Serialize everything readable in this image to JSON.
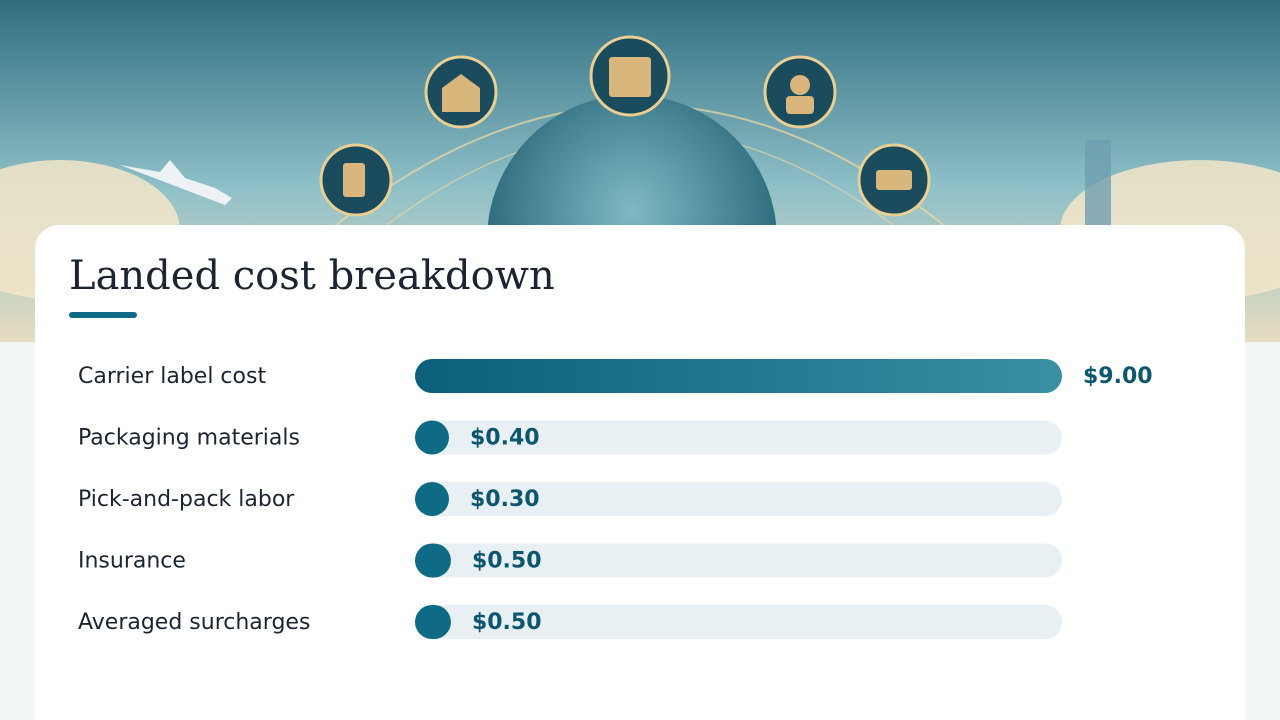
{
  "chart_data": {
    "type": "bar",
    "orientation": "horizontal",
    "title": "Landed cost breakdown",
    "categories": [
      "Carrier label cost",
      "Packaging materials",
      "Pick-and-pack labor",
      "Insurance",
      "Averaged surcharges"
    ],
    "values": [
      9.0,
      0.4,
      0.3,
      0.5,
      0.5
    ],
    "value_labels": [
      "$9.00",
      "$0.40",
      "$0.30",
      "$0.50",
      "$0.50"
    ],
    "color": "#0e6a85"
  }
}
